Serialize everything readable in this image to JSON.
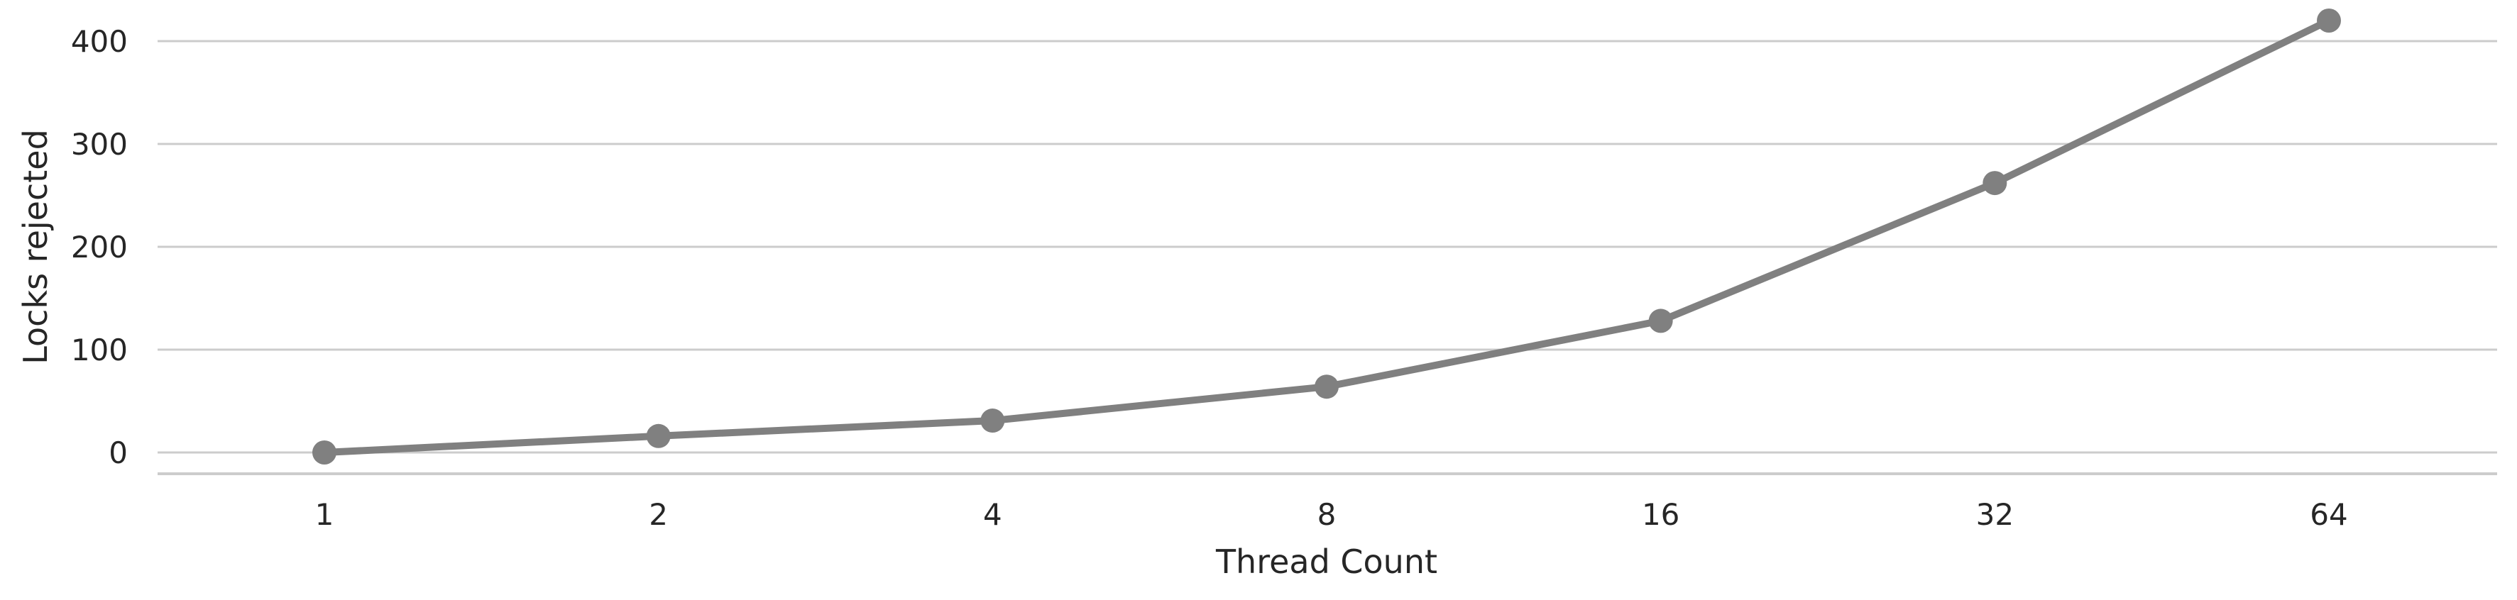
{
  "chart_data": {
    "type": "line",
    "title": "",
    "xlabel": "Thread Count",
    "ylabel": "Locks rejected",
    "categories": [
      "1",
      "2",
      "4",
      "8",
      "16",
      "32",
      "64"
    ],
    "series": [
      {
        "values": [
          0,
          16,
          31,
          64,
          128,
          262,
          420
        ]
      }
    ],
    "ylim": [
      -20,
      420
    ],
    "yticks": [
      0,
      100,
      200,
      300,
      400
    ],
    "grid": "horizontal",
    "colors": {
      "line": "#808080",
      "grid": "#cccccc",
      "text": "#262626"
    }
  }
}
